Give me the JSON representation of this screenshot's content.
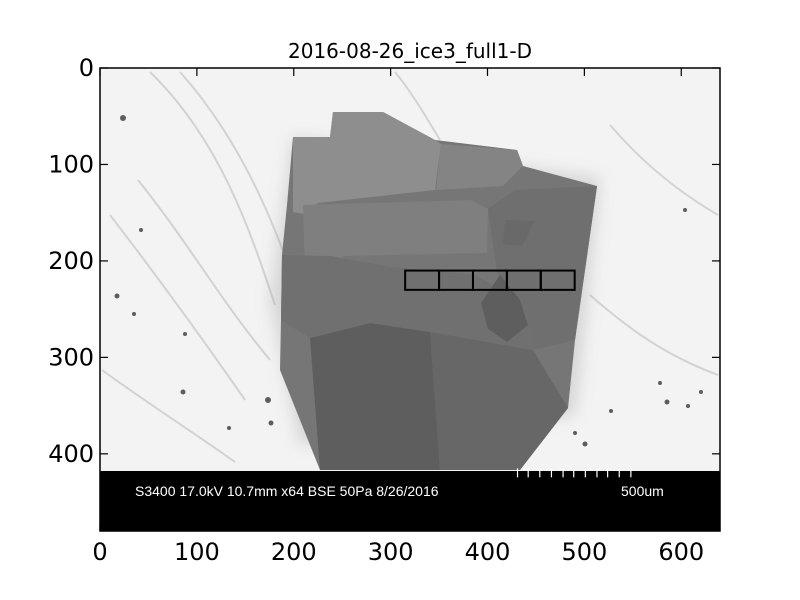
{
  "figure": {
    "title": "2016-08-26_ice3_full1-D"
  },
  "axes": {
    "x_range": [
      0,
      640
    ],
    "y_range": [
      0,
      480
    ],
    "y_inverted": true,
    "x_ticks": [
      0,
      100,
      200,
      300,
      400,
      500,
      600
    ],
    "y_ticks": [
      0,
      100,
      200,
      300,
      400
    ],
    "x_tick_labels": [
      "0",
      "100",
      "200",
      "300",
      "400",
      "500",
      "600"
    ],
    "y_tick_labels": [
      "0",
      "100",
      "200",
      "300",
      "400"
    ]
  },
  "image": {
    "description_type": "SEM backscatter micrograph",
    "sem_info_bar": {
      "text": "S3400 17.0kV 10.7mm x64 BSE 50Pa 8/26/2016",
      "scale_label": "500um",
      "bar_top_y": 415,
      "scale_tick_x_positions": [
        431,
        442,
        454,
        466,
        478,
        489,
        501,
        513,
        524,
        536,
        548
      ]
    }
  },
  "overlay": {
    "type": "grid_of_boxes",
    "count": 5,
    "boxes": [
      {
        "x0": 315,
        "x1": 350,
        "y0": 210,
        "y1": 230
      },
      {
        "x0": 350,
        "x1": 385,
        "y0": 210,
        "y1": 230
      },
      {
        "x0": 385,
        "x1": 420,
        "y0": 210,
        "y1": 230
      },
      {
        "x0": 420,
        "x1": 455,
        "y0": 210,
        "y1": 230
      },
      {
        "x0": 455,
        "x1": 490,
        "y0": 210,
        "y1": 230
      }
    ],
    "stroke_color": "#000000"
  },
  "colors": {
    "background": "#ffffff",
    "micrograph_background": "#f3f3f3",
    "crystal_dark": "#666666",
    "crystal_mid": "#7a7a7a",
    "crystal_light": "#8b8b8b",
    "info_bar": "#000000",
    "overlay": "#000000"
  }
}
